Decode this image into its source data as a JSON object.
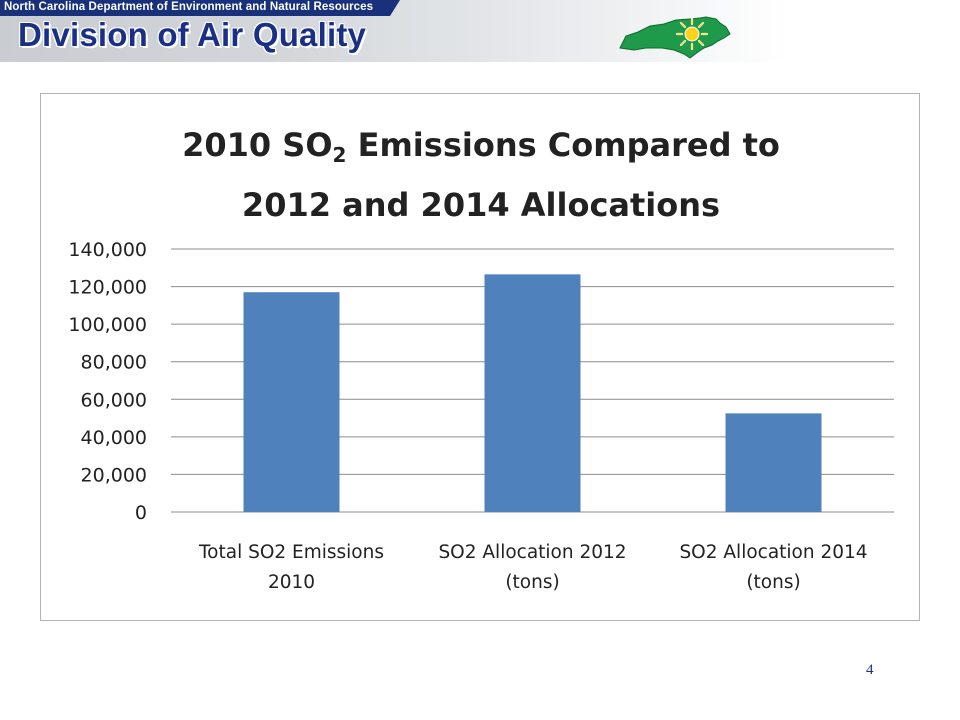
{
  "header": {
    "department": "North Carolina Department of Environment and Natural Resources",
    "division": "Division of Air Quality",
    "logo_icon": "nc-state-sun-icon"
  },
  "slide": {
    "page_number": "4"
  },
  "chart_data": {
    "type": "bar",
    "title_line1_main": "2010 SO",
    "title_line1_sub": "2",
    "title_line1_rest": " Emissions Compared to",
    "title_line2": "2012 and 2014 Allocations",
    "categories": [
      [
        "Total SO2 Emissions",
        "2010"
      ],
      [
        "SO2 Allocation 2012",
        "(tons)"
      ],
      [
        "SO2 Allocation 2014",
        "(tons)"
      ]
    ],
    "values": [
      117000,
      126500,
      52500
    ],
    "ylim": [
      0,
      140000
    ],
    "yticks": [
      0,
      20000,
      40000,
      60000,
      80000,
      100000,
      120000,
      140000
    ],
    "ytick_labels": [
      "0",
      "20,000",
      "40,000",
      "60,000",
      "80,000",
      "100,000",
      "120,000",
      "140,000"
    ],
    "grid": true,
    "legend": "none",
    "bar_color": "#4f81bd",
    "grid_color": "#8c8c8c"
  }
}
